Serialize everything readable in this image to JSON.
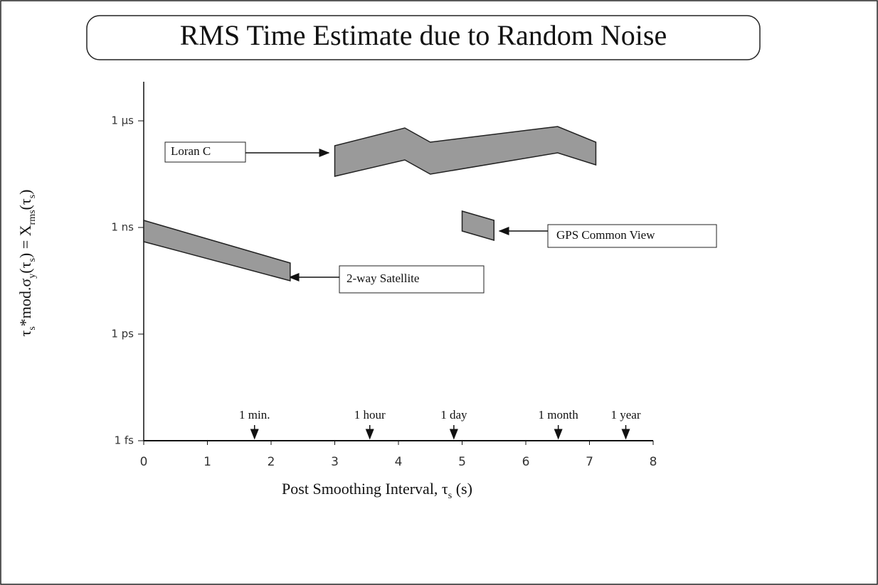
{
  "chart_data": {
    "type": "band",
    "title": "RMS Time Estimate due to Random Noise",
    "xlabel_parts": [
      "Post Smoothing Interval,  τ",
      "s",
      "   (s)"
    ],
    "ylabel_parts": [
      "τ",
      "s",
      "*mod.σ",
      "y",
      "(τ",
      "s",
      ") = X",
      "rms",
      "(τ",
      "s",
      ")"
    ],
    "xlim": [
      0,
      8
    ],
    "xticks": [
      0,
      1,
      2,
      3,
      4,
      5,
      6,
      7,
      8
    ],
    "ylim": [
      -15,
      -5
    ],
    "yticks": [
      {
        "value": -15,
        "label": "1 fs"
      },
      {
        "value": -12,
        "label": "1 ps"
      },
      {
        "value": -9,
        "label": "1 ns"
      },
      {
        "value": -6,
        "label": "1 µs"
      }
    ],
    "series": [
      {
        "name": "Loran C",
        "color": "#9a9a9a",
        "x": [
          3.0,
          4.1,
          4.5,
          6.5,
          7.1
        ],
        "upper": [
          -6.7,
          -6.2,
          -6.6,
          -6.16,
          -6.6
        ],
        "lower": [
          -7.56,
          -7.1,
          -7.5,
          -6.9,
          -7.24
        ]
      },
      {
        "name": "2-way Satellite",
        "color": "#9a9a9a",
        "x": [
          0,
          2.3
        ],
        "upper": [
          -8.8,
          -10.0
        ],
        "lower": [
          -9.4,
          -10.5
        ]
      },
      {
        "name": "GPS Common View",
        "color": "#9a9a9a",
        "x": [
          5.0,
          5.5
        ],
        "upper": [
          -8.54,
          -8.8
        ],
        "lower": [
          -9.1,
          -9.36
        ]
      }
    ],
    "time_markers": [
      {
        "label": "1 min.",
        "x": 1.74
      },
      {
        "label": "1 hour",
        "x": 3.55
      },
      {
        "label": "1 day",
        "x": 4.87
      },
      {
        "label": "1 month",
        "x": 6.51
      },
      {
        "label": "1 year",
        "x": 7.57
      }
    ]
  }
}
